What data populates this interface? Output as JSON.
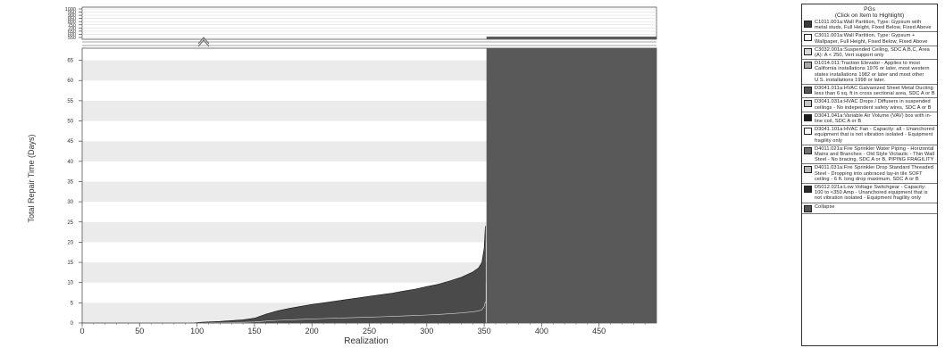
{
  "chart_data": {
    "type": "area",
    "xlabel": "Realization",
    "ylabel": "Total Repair Time (Days)",
    "xlim": [
      0,
      500
    ],
    "ylim": [
      0,
      68
    ],
    "ylim_upper_break": [
      550,
      1000
    ],
    "x_ticks": [
      "0",
      "50",
      "100",
      "150",
      "200",
      "250",
      "300",
      "350",
      "400",
      "450"
    ],
    "y_ticks": [
      "0",
      "5",
      "10",
      "15",
      "20",
      "25",
      "30",
      "35",
      "40",
      "45",
      "50",
      "55",
      "60",
      "65"
    ],
    "y_ticks_upper": [
      "550",
      "600",
      "650",
      "700",
      "750",
      "800",
      "850",
      "900",
      "950",
      "1000"
    ],
    "grid": "alternating horizontal bands",
    "legend_position": "right",
    "legend_title": "PGs\n(Click on Item to Highlight)",
    "legend": [
      {
        "label": "C1011.001a:Wall Partition, Type: Gypsum with metal studs, Full Height, Fixed Below, Fixed Above",
        "color": "#3c3c3c"
      },
      {
        "label": "C3011.001a:Wall Partition, Type: Gypsum + Wallpaper, Full Height, Fixed Below, Fixed Above",
        "color": "#ffffff"
      },
      {
        "label": "C3032.001a:Suspended Ceiling, SDC A,B,C, Area (A): A < 250, Vert support only",
        "color": "#d8d8d8"
      },
      {
        "label": "D1014.011:Traction Elevator - Applies to most California installations 1976 or later, most western states installations 1982 or later and most other U.S. installations 1998 or later.",
        "color": "#a8a8a8"
      },
      {
        "label": "D3041.011a:HVAC Galvanized Sheet Metal Ducting less than 6 sq. ft in cross sectional area, SDC A or B",
        "color": "#585858"
      },
      {
        "label": "D3041.031a:HVAC Drops / Diffusers in suspended ceilings - No independent safety wires, SDC A or B",
        "color": "#c4c4c4"
      },
      {
        "label": "D3041.041a:Variable Air Volume (VAV) box with in-line coil, SDC A or B",
        "color": "#1e1e1e"
      },
      {
        "label": "D3041.101a:HVAC Fan - Capacity: all - Unanchored equipment that is not vibration isolated - Equipment fragility only",
        "color": "#ffffff"
      },
      {
        "label": "D4011.021a:Fire Sprinkler Water Piping - Horizontal Mains and Branches - Old Style Victaulic - Thin Wall Steel - No bracing, SDC A or B, PIPING FRAGILITY",
        "color": "#707070"
      },
      {
        "label": "D4011.031a:Fire Sprinkler Drop Standard Threaded Steel - Dropping into unbraced lay-in tile SOFT ceiling - 6 ft. long drop maximum, SDC A or B",
        "color": "#b8b8b8"
      },
      {
        "label": "D5012.021a:Low Voltage Switchgear - Capacity: 100 to <350 Amp - Unanchored equipment that is not vibration isolated - Equipment fragility only",
        "color": "#2c2c2c"
      },
      {
        "label": "Collapse",
        "color": "#555555"
      }
    ],
    "collapse_from_realization": 352,
    "series": [
      {
        "name": "Total",
        "x": [
          0,
          95,
          105,
          120,
          140,
          150,
          160,
          170,
          180,
          190,
          200,
          210,
          220,
          230,
          240,
          250,
          260,
          270,
          280,
          290,
          300,
          310,
          320,
          330,
          340,
          345,
          348,
          350,
          351
        ],
        "values": [
          0,
          0,
          0.2,
          0.4,
          0.8,
          1.2,
          2.2,
          3.0,
          3.6,
          4.1,
          4.6,
          5.0,
          5.4,
          5.8,
          6.2,
          6.6,
          7.0,
          7.4,
          7.9,
          8.4,
          9.0,
          9.6,
          10.4,
          11.3,
          12.6,
          13.6,
          15.0,
          18.5,
          24.0
        ]
      }
    ]
  }
}
